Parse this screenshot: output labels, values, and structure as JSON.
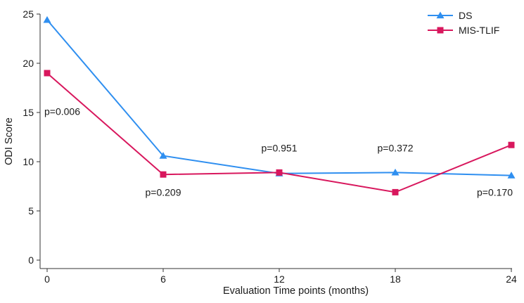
{
  "chart_data": {
    "type": "line",
    "title": "",
    "xlabel": "Evaluation Time points (months)",
    "ylabel": "ODI Score",
    "x": [
      0,
      6,
      12,
      18,
      24
    ],
    "xticks": [
      "0",
      "6",
      "12",
      "18",
      "24"
    ],
    "yticks": [
      "0",
      "5",
      "10",
      "15",
      "20",
      "25"
    ],
    "xlim": [
      0,
      24
    ],
    "ylim": [
      0,
      25
    ],
    "grid": false,
    "legend_position": "top-right",
    "series": [
      {
        "name": "DS",
        "marker": "triangle",
        "color": "#2f8ff0",
        "values": [
          24.4,
          10.6,
          8.8,
          8.9,
          8.6
        ]
      },
      {
        "name": "MIS-TLIF",
        "marker": "square",
        "color": "#d8175d",
        "values": [
          19.0,
          8.7,
          8.9,
          6.9,
          11.7
        ]
      }
    ],
    "annotations": [
      {
        "text": "p=0.006",
        "x": 0,
        "y": 15.1
      },
      {
        "text": "p=0.209",
        "x": 6,
        "y": 6.9
      },
      {
        "text": "p=0.951",
        "x": 12,
        "y": 11.4
      },
      {
        "text": "p=0.372",
        "x": 18,
        "y": 11.4
      },
      {
        "text": "p=0.170",
        "x": 24,
        "y": 6.9
      }
    ]
  }
}
